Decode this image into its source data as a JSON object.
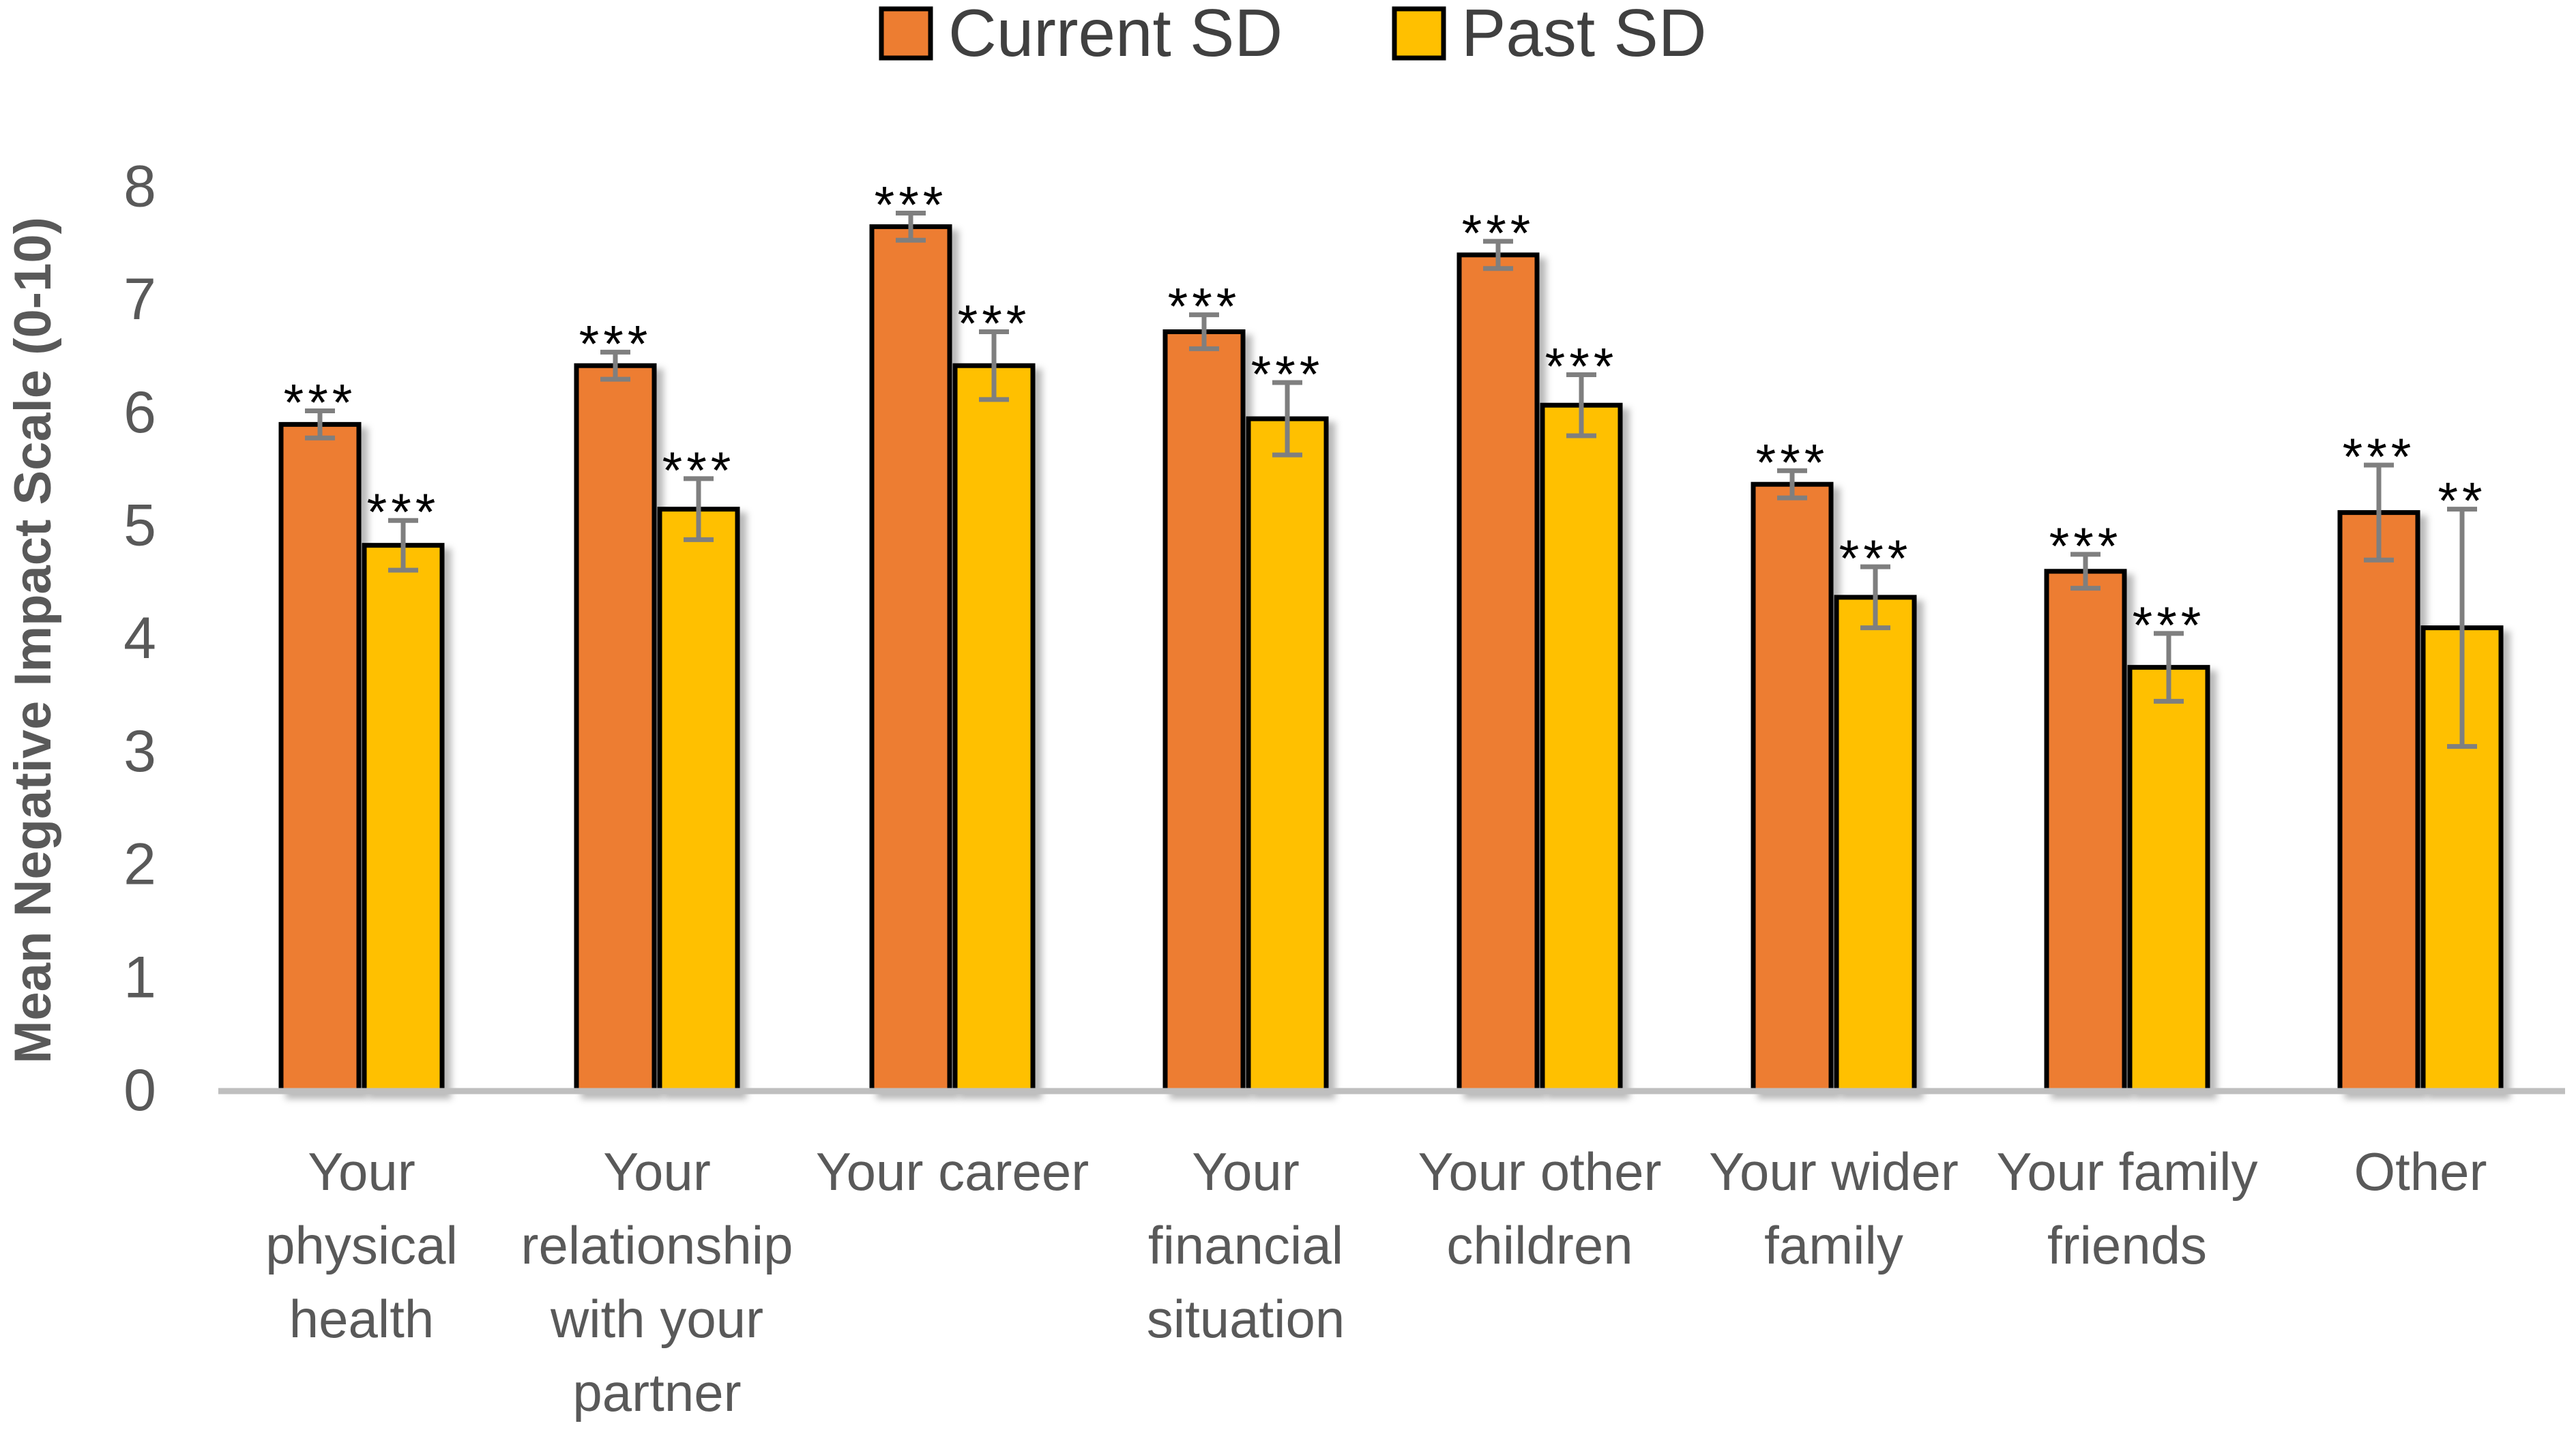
{
  "chart_data": {
    "type": "bar",
    "title": "",
    "xlabel": "",
    "ylabel": "Mean Negative Impact Scale (0-10)",
    "ylim": [
      0,
      8
    ],
    "yticks": [
      0,
      1,
      2,
      3,
      4,
      5,
      6,
      7,
      8
    ],
    "grid": false,
    "legend_position": "top",
    "categories": [
      [
        "Your",
        "physical",
        "health"
      ],
      [
        "Your",
        "relationship",
        "with your",
        "partner"
      ],
      [
        "Your career"
      ],
      [
        "Your",
        "financial",
        "situation"
      ],
      [
        "Your other",
        "children"
      ],
      [
        "Your wider",
        "family"
      ],
      [
        "Your family",
        "friends"
      ],
      [
        "Other"
      ]
    ],
    "series": [
      {
        "name": "Current SD",
        "color": "#ED7D31",
        "values": [
          5.9,
          6.42,
          7.65,
          6.72,
          7.4,
          5.37,
          4.6,
          5.12
        ],
        "errors": [
          0.12,
          0.12,
          0.12,
          0.15,
          0.12,
          0.12,
          0.15,
          0.42
        ],
        "significance": [
          "***",
          "***",
          "***",
          "***",
          "***",
          "***",
          "***",
          "***"
        ]
      },
      {
        "name": "Past SD",
        "color": "#FFC000",
        "values": [
          4.83,
          5.15,
          6.42,
          5.95,
          6.07,
          4.37,
          3.75,
          4.1
        ],
        "errors": [
          0.22,
          0.27,
          0.3,
          0.32,
          0.27,
          0.27,
          0.3,
          1.05
        ],
        "significance": [
          "***",
          "***",
          "***",
          "***",
          "***",
          "***",
          "***",
          "**"
        ]
      }
    ]
  }
}
